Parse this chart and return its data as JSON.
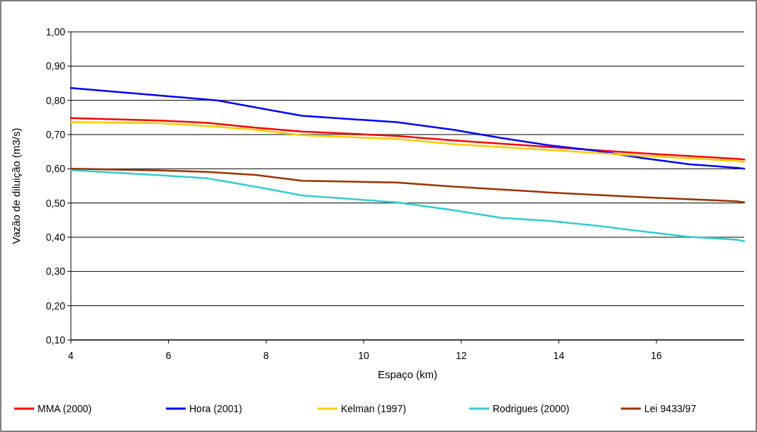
{
  "chart_data": {
    "type": "line",
    "xlabel": "Espaço (km)",
    "ylabel": "Vazão de diluição (m3/s)",
    "xlim": [
      4,
      17.8
    ],
    "xticks": [
      4,
      6,
      8,
      10,
      12,
      14,
      16
    ],
    "ylim": [
      0.1,
      1.0
    ],
    "yticks": [
      {
        "value": 0.1,
        "label": "0,10"
      },
      {
        "value": 0.2,
        "label": "0,20"
      },
      {
        "value": 0.3,
        "label": "0,30"
      },
      {
        "value": 0.4,
        "label": "0,40"
      },
      {
        "value": 0.5,
        "label": "0,50"
      },
      {
        "value": 0.6,
        "label": "0,60"
      },
      {
        "value": 0.7,
        "label": "0,70"
      },
      {
        "value": 0.8,
        "label": "0,80"
      },
      {
        "value": 0.9,
        "label": "0,90"
      },
      {
        "value": 1.0,
        "label": "1,00"
      }
    ],
    "grid": "y",
    "legend": "bottom",
    "marker": "none",
    "line_style": "solid",
    "x": [
      4,
      5.84,
      6.8,
      7.78,
      8.74,
      10.68,
      11.84,
      13.78,
      15.72,
      17.65,
      17.8
    ],
    "series": [
      {
        "name": "MMA (2000)",
        "color": "#ff0000",
        "values": [
          0.748,
          0.741,
          0.734,
          0.72,
          0.709,
          0.696,
          0.683,
          0.664,
          0.645,
          0.629,
          0.627
        ]
      },
      {
        "name": "Hora (2001)",
        "color": "#0000ff",
        "x": [
          4,
          5.84,
          7.0,
          8.07,
          8.74,
          10.68,
          11.84,
          12.81,
          13.78,
          14.75,
          15.72,
          16.68,
          17.65,
          17.8
        ],
        "values": [
          0.836,
          0.814,
          0.8,
          0.772,
          0.755,
          0.736,
          0.714,
          0.69,
          0.669,
          0.653,
          0.631,
          0.613,
          0.603,
          0.6
        ]
      },
      {
        "name": "Kelman (1997)",
        "color": "#ffcc00",
        "values": [
          0.736,
          0.733,
          0.725,
          0.714,
          0.698,
          0.687,
          0.672,
          0.655,
          0.638,
          0.623,
          0.62
        ]
      },
      {
        "name": "Rodrigues (2000)",
        "color": "#33cccc",
        "x": [
          4,
          5.84,
          6.8,
          7.3,
          8.07,
          8.74,
          10.68,
          11.84,
          12.81,
          13.78,
          14.75,
          15.72,
          16.68,
          17.65,
          17.8
        ],
        "values": [
          0.596,
          0.581,
          0.572,
          0.56,
          0.54,
          0.522,
          0.502,
          0.479,
          0.457,
          0.448,
          0.434,
          0.417,
          0.401,
          0.393,
          0.388
        ]
      },
      {
        "name": "Lei 9433/97",
        "color": "#993300",
        "values": [
          0.6,
          0.595,
          0.591,
          0.582,
          0.565,
          0.56,
          0.548,
          0.531,
          0.517,
          0.505,
          0.502
        ]
      }
    ]
  }
}
